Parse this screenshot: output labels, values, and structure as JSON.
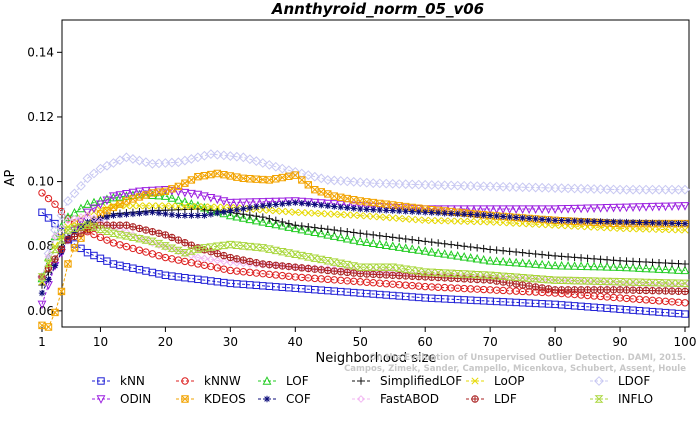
{
  "chart_data": {
    "type": "line",
    "title": "Annthyroid_norm_05_v06",
    "xlabel": "Neighborhood size",
    "ylabel": "AP",
    "xlim": [
      1,
      100
    ],
    "ylim": [
      0.055,
      0.15
    ],
    "x_ticks": [
      1,
      10,
      20,
      30,
      40,
      50,
      60,
      70,
      80,
      90,
      100
    ],
    "y_ticks": [
      0.06,
      0.08,
      0.1,
      0.12,
      0.14
    ],
    "y_tick_labels": [
      "0.06",
      "0.08",
      "0.10",
      "0.12",
      "0.14"
    ],
    "watermark": "Campos, Zimek, Sander, Campello, Micenkova, Schubert, Assent, Houle",
    "watermark_line1": "On the Evaluation of Unsupervised Outlier Detection. DAMI, 2015.",
    "legend_position": "bottom",
    "series": [
      {
        "name": "kNN",
        "color": "#1f1fd6",
        "marker": "square",
        "points": [
          [
            1,
            0.0905
          ],
          [
            3,
            0.087
          ],
          [
            5,
            0.082
          ],
          [
            8,
            0.078
          ],
          [
            12,
            0.0745
          ],
          [
            20,
            0.071
          ],
          [
            30,
            0.0685
          ],
          [
            40,
            0.067
          ],
          [
            50,
            0.0655
          ],
          [
            60,
            0.064
          ],
          [
            70,
            0.063
          ],
          [
            80,
            0.062
          ],
          [
            90,
            0.0605
          ],
          [
            100,
            0.059
          ]
        ]
      },
      {
        "name": "kNNW",
        "color": "#dd1f1f",
        "marker": "circle",
        "points": [
          [
            1,
            0.0965
          ],
          [
            3,
            0.093
          ],
          [
            5,
            0.0885
          ],
          [
            8,
            0.0845
          ],
          [
            12,
            0.081
          ],
          [
            20,
            0.0765
          ],
          [
            30,
            0.0725
          ],
          [
            40,
            0.0705
          ],
          [
            50,
            0.069
          ],
          [
            60,
            0.0675
          ],
          [
            70,
            0.0665
          ],
          [
            80,
            0.0655
          ],
          [
            90,
            0.064
          ],
          [
            100,
            0.0625
          ]
        ]
      },
      {
        "name": "LOF",
        "color": "#22cc22",
        "marker": "triangle-up",
        "points": [
          [
            1,
            0.07
          ],
          [
            3,
            0.083
          ],
          [
            5,
            0.089
          ],
          [
            8,
            0.093
          ],
          [
            12,
            0.095
          ],
          [
            16,
            0.096
          ],
          [
            20,
            0.0955
          ],
          [
            25,
            0.0925
          ],
          [
            30,
            0.0895
          ],
          [
            40,
            0.0855
          ],
          [
            50,
            0.0815
          ],
          [
            60,
            0.0785
          ],
          [
            70,
            0.0755
          ],
          [
            80,
            0.074
          ],
          [
            90,
            0.0735
          ],
          [
            100,
            0.0725
          ]
        ]
      },
      {
        "name": "SimplifiedLOF",
        "color": "#111111",
        "marker": "plus",
        "points": [
          [
            1,
            0.068
          ],
          [
            3,
            0.076
          ],
          [
            5,
            0.083
          ],
          [
            8,
            0.0875
          ],
          [
            12,
            0.09
          ],
          [
            18,
            0.091
          ],
          [
            25,
            0.0915
          ],
          [
            30,
            0.0905
          ],
          [
            35,
            0.089
          ],
          [
            40,
            0.0865
          ],
          [
            50,
            0.084
          ],
          [
            60,
            0.0815
          ],
          [
            70,
            0.079
          ],
          [
            80,
            0.077
          ],
          [
            90,
            0.0755
          ],
          [
            100,
            0.0745
          ]
        ]
      },
      {
        "name": "LoOP",
        "color": "#e6d800",
        "marker": "cross",
        "points": [
          [
            1,
            0.069
          ],
          [
            3,
            0.08
          ],
          [
            5,
            0.086
          ],
          [
            8,
            0.09
          ],
          [
            12,
            0.0925
          ],
          [
            20,
            0.0925
          ],
          [
            30,
            0.092
          ],
          [
            40,
            0.0905
          ],
          [
            50,
            0.0895
          ],
          [
            60,
            0.088
          ],
          [
            70,
            0.0875
          ],
          [
            80,
            0.0865
          ],
          [
            90,
            0.0855
          ],
          [
            100,
            0.085
          ]
        ]
      },
      {
        "name": "LDOF",
        "color": "#c8c8f2",
        "marker": "diamond",
        "points": [
          [
            1,
            0.0705
          ],
          [
            3,
            0.085
          ],
          [
            5,
            0.094
          ],
          [
            8,
            0.101
          ],
          [
            10,
            0.104
          ],
          [
            14,
            0.1075
          ],
          [
            18,
            0.1055
          ],
          [
            22,
            0.106
          ],
          [
            27,
            0.1085
          ],
          [
            32,
            0.1075
          ],
          [
            38,
            0.104
          ],
          [
            45,
            0.1005
          ],
          [
            52,
            0.0995
          ],
          [
            60,
            0.099
          ],
          [
            70,
            0.0985
          ],
          [
            80,
            0.098
          ],
          [
            90,
            0.0975
          ],
          [
            100,
            0.0975
          ]
        ]
      },
      {
        "name": "ODIN",
        "color": "#9b1fe0",
        "marker": "triangle-down",
        "points": [
          [
            1,
            0.062
          ],
          [
            3,
            0.074
          ],
          [
            5,
            0.082
          ],
          [
            8,
            0.0905
          ],
          [
            12,
            0.0955
          ],
          [
            16,
            0.097
          ],
          [
            20,
            0.0975
          ],
          [
            25,
            0.096
          ],
          [
            30,
            0.0935
          ],
          [
            40,
            0.094
          ],
          [
            50,
            0.0925
          ],
          [
            60,
            0.0915
          ],
          [
            70,
            0.0915
          ],
          [
            80,
            0.0915
          ],
          [
            90,
            0.092
          ],
          [
            100,
            0.0925
          ]
        ]
      },
      {
        "name": "KDEOS",
        "color": "#f2a300",
        "marker": "square-x",
        "points": [
          [
            1,
            0.0555
          ],
          [
            2,
            0.055
          ],
          [
            3,
            0.0595
          ],
          [
            4,
            0.066
          ],
          [
            5,
            0.0745
          ],
          [
            6,
            0.0795
          ],
          [
            8,
            0.0855
          ],
          [
            10,
            0.09
          ],
          [
            14,
            0.094
          ],
          [
            18,
            0.0965
          ],
          [
            20,
            0.097
          ],
          [
            22,
            0.0985
          ],
          [
            25,
            0.1015
          ],
          [
            28,
            0.1025
          ],
          [
            32,
            0.101
          ],
          [
            36,
            0.1005
          ],
          [
            40,
            0.102
          ],
          [
            43,
            0.0975
          ],
          [
            46,
            0.0955
          ],
          [
            50,
            0.094
          ],
          [
            60,
            0.0915
          ],
          [
            70,
            0.0895
          ],
          [
            80,
            0.088
          ],
          [
            90,
            0.087
          ],
          [
            100,
            0.087
          ]
        ]
      },
      {
        "name": "COF",
        "color": "#0b0b7a",
        "marker": "asterisk",
        "points": [
          [
            1,
            0.0655
          ],
          [
            3,
            0.074
          ],
          [
            5,
            0.0825
          ],
          [
            8,
            0.0875
          ],
          [
            12,
            0.0895
          ],
          [
            18,
            0.0905
          ],
          [
            22,
            0.0895
          ],
          [
            26,
            0.0895
          ],
          [
            30,
            0.091
          ],
          [
            35,
            0.0925
          ],
          [
            40,
            0.0935
          ],
          [
            45,
            0.0925
          ],
          [
            50,
            0.0915
          ],
          [
            60,
            0.0905
          ],
          [
            70,
            0.0895
          ],
          [
            80,
            0.088
          ],
          [
            90,
            0.0875
          ],
          [
            100,
            0.087
          ]
        ]
      },
      {
        "name": "FastABOD",
        "color": "#f2b8f2",
        "marker": "diamond-open",
        "points": [
          [
            1,
            0.0705
          ],
          [
            3,
            0.083
          ],
          [
            5,
            0.088
          ],
          [
            8,
            0.0895
          ],
          [
            12,
            0.086
          ],
          [
            18,
            0.081
          ],
          [
            25,
            0.0765
          ],
          [
            30,
            0.075
          ],
          [
            40,
            0.0735
          ],
          [
            50,
            0.0725
          ],
          [
            60,
            0.0715
          ],
          [
            70,
            0.0705
          ],
          [
            80,
            0.0695
          ],
          [
            90,
            0.0685
          ],
          [
            100,
            0.068
          ]
        ]
      },
      {
        "name": "LDF",
        "color": "#aa2222",
        "marker": "circle-plus",
        "points": [
          [
            1,
            0.0705
          ],
          [
            3,
            0.076
          ],
          [
            5,
            0.082
          ],
          [
            8,
            0.085
          ],
          [
            10,
            0.0865
          ],
          [
            14,
            0.0865
          ],
          [
            20,
            0.0835
          ],
          [
            25,
            0.0795
          ],
          [
            30,
            0.0765
          ],
          [
            35,
            0.0745
          ],
          [
            40,
            0.0735
          ],
          [
            45,
            0.0725
          ],
          [
            50,
            0.0715
          ],
          [
            60,
            0.0705
          ],
          [
            70,
            0.0695
          ],
          [
            80,
            0.0665
          ],
          [
            90,
            0.0665
          ],
          [
            100,
            0.066
          ]
        ]
      },
      {
        "name": "INFLO",
        "color": "#a8d63a",
        "marker": "hourglass",
        "points": [
          [
            1,
            0.0705
          ],
          [
            3,
            0.079
          ],
          [
            5,
            0.085
          ],
          [
            8,
            0.0865
          ],
          [
            12,
            0.084
          ],
          [
            18,
            0.0815
          ],
          [
            23,
            0.078
          ],
          [
            26,
            0.0795
          ],
          [
            30,
            0.0805
          ],
          [
            35,
            0.0795
          ],
          [
            40,
            0.0775
          ],
          [
            45,
            0.0755
          ],
          [
            50,
            0.0735
          ],
          [
            55,
            0.0735
          ],
          [
            60,
            0.072
          ],
          [
            70,
            0.071
          ],
          [
            80,
            0.0695
          ],
          [
            90,
            0.069
          ],
          [
            100,
            0.0685
          ]
        ]
      }
    ]
  }
}
